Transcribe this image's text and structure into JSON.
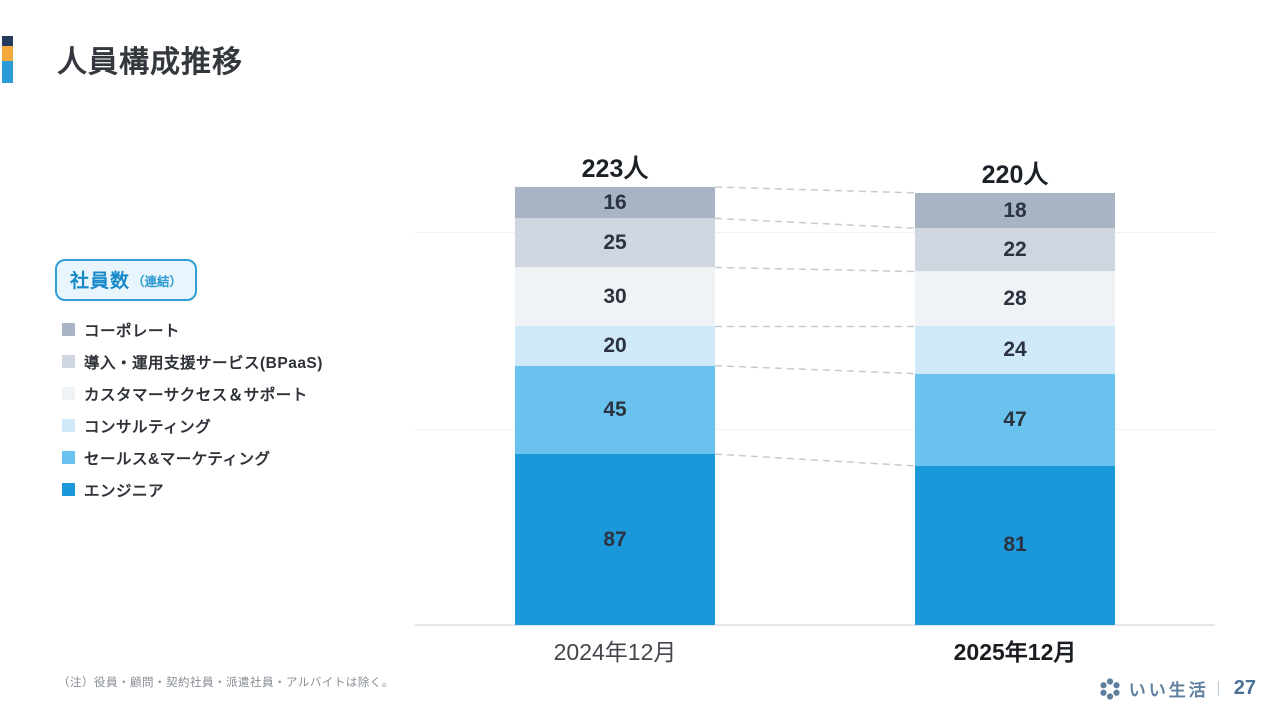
{
  "slide": {
    "title": "人員構成推移",
    "badge": {
      "label": "社員数",
      "sublabel": "（連結）"
    },
    "note": "（注）役員・顧問・契約社員・派遣社員・アルバイトは除く。",
    "footer": {
      "company": "いい生活",
      "separator": "｜",
      "page": "27"
    }
  },
  "accent_colors": [
    "#25395c",
    "#f3a93c",
    "#2a9cd8"
  ],
  "chart_data": {
    "type": "bar",
    "subtype": "stacked-column-comparison",
    "categories": [
      "2024年12月",
      "2025年12月"
    ],
    "category_emphasis": [
      false,
      true
    ],
    "totals": [
      223,
      220
    ],
    "totals_label": [
      "223人",
      "220人"
    ],
    "series": [
      {
        "name": "コーポレート",
        "color": "#a8b3c3",
        "values": [
          16,
          18
        ]
      },
      {
        "name": "導入・運用支援サービス(BPaaS)",
        "color": "#d0d6df",
        "values": [
          25,
          22
        ]
      },
      {
        "name": "カスタマーサクセス＆サポート",
        "color": "#f0f3f6",
        "values": [
          30,
          28
        ]
      },
      {
        "name": "コンサルティング",
        "color": "#cfe9f8",
        "values": [
          20,
          24
        ]
      },
      {
        "name": "セールス&マーケティング",
        "color": "#69c3ee",
        "values": [
          45,
          47
        ]
      },
      {
        "name": "エンジニア",
        "color": "#1b98d9",
        "values": [
          87,
          81
        ]
      }
    ],
    "stack_order": "first-series-on-top",
    "legend_position": "left",
    "connector_style": "dashed lines between corresponding segment boundaries",
    "gridline_values": [
      100,
      200
    ],
    "ylim": [
      0,
      240
    ],
    "grid": true
  }
}
